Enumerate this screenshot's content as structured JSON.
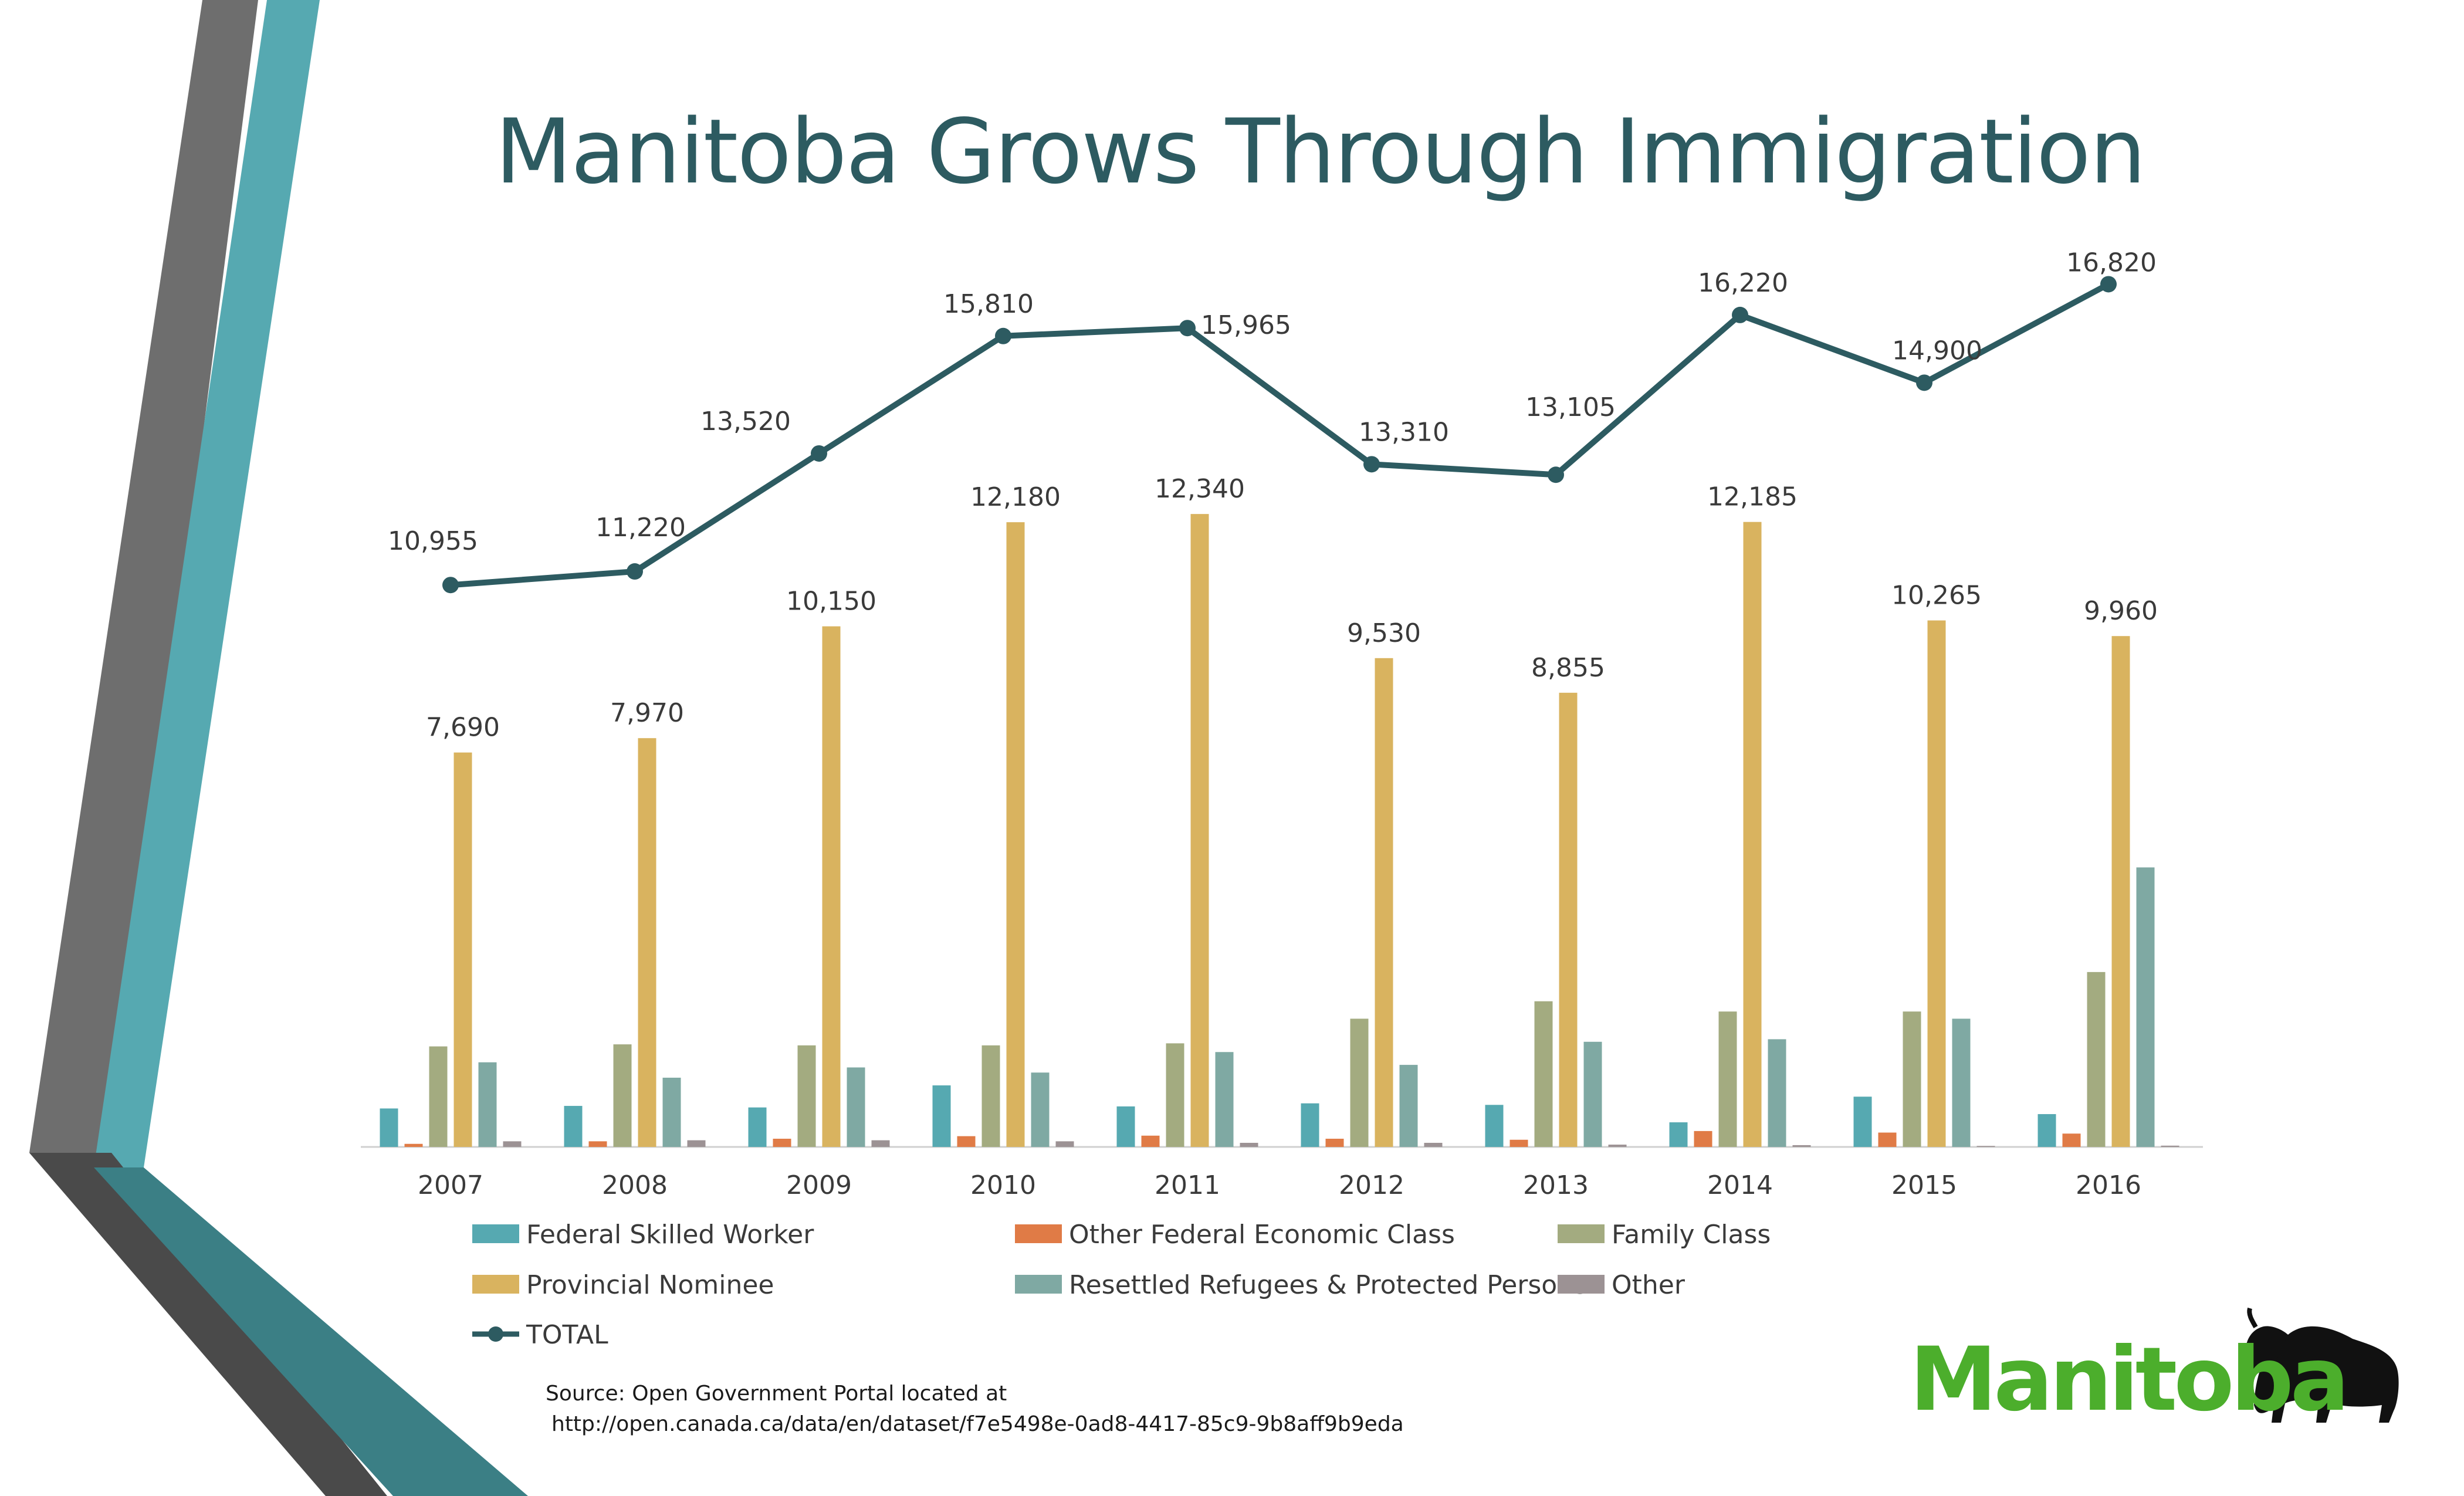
{
  "title": "Manitoba Grows Through Immigration",
  "source": {
    "line1": "Source: Open Government Portal located at",
    "line2": "http://open.canada.ca/data/en/dataset/f7e5498e-0ad8-4417-85c9-9b8aff9b9eda"
  },
  "logo": {
    "text": "Manitoba",
    "icon": "bison-icon",
    "color": "#4cae2c"
  },
  "decor": {
    "stripe_gray": "#6e6e6e",
    "stripe_teal": "#56a9b1",
    "stripe_dark_teal": "#3b7f85",
    "stripe_dark": "#4a4a4a"
  },
  "chart_data": {
    "type": "bar",
    "categories": [
      "2007",
      "2008",
      "2009",
      "2010",
      "2011",
      "2012",
      "2013",
      "2014",
      "2015",
      "2016"
    ],
    "ylim": [
      0,
      17500
    ],
    "grid": false,
    "legend_position": "bottom",
    "series": [
      {
        "name": "Federal Skilled Worker",
        "type": "bar",
        "color": "#56a9b1",
        "values": [
          750,
          800,
          770,
          1200,
          790,
          850,
          820,
          480,
          980,
          640
        ]
      },
      {
        "name": "Other Federal Economic Class",
        "type": "bar",
        "color": "#e07b46",
        "values": [
          60,
          110,
          160,
          210,
          220,
          160,
          140,
          310,
          280,
          260
        ]
      },
      {
        "name": "Family Class",
        "type": "bar",
        "color": "#a3ab80",
        "values": [
          1960,
          2000,
          1980,
          1980,
          2020,
          2500,
          2840,
          2640,
          2640,
          3410
        ]
      },
      {
        "name": "Provincial Nominee",
        "type": "bar",
        "color": "#d9b35f",
        "values": [
          7690,
          7970,
          10150,
          12180,
          12340,
          9530,
          8855,
          12185,
          10265,
          9960
        ],
        "labels": [
          "7,690",
          "7,970",
          "10,150",
          "12,180",
          "12,340",
          "9,530",
          "8,855",
          "12,185",
          "10,265",
          "9,960"
        ]
      },
      {
        "name": "Resettled Refugees & Protected Persons",
        "type": "bar",
        "color": "#7fa9a3",
        "values": [
          1650,
          1350,
          1550,
          1450,
          1850,
          1600,
          2050,
          2100,
          2500,
          5450
        ]
      },
      {
        "name": "Other",
        "type": "bar",
        "color": "#9c9294",
        "values": [
          110,
          130,
          130,
          110,
          80,
          80,
          45,
          35,
          20,
          25
        ]
      },
      {
        "name": "TOTAL",
        "type": "line",
        "color": "#2d5b61",
        "values": [
          10955,
          11220,
          13520,
          15810,
          15965,
          13310,
          13105,
          16220,
          14900,
          16820
        ],
        "labels": [
          "10,955",
          "11,220",
          "13,520",
          "15,810",
          "15,965",
          "13,310",
          "13,105",
          "16,220",
          "14,900",
          "16,820"
        ]
      }
    ]
  }
}
